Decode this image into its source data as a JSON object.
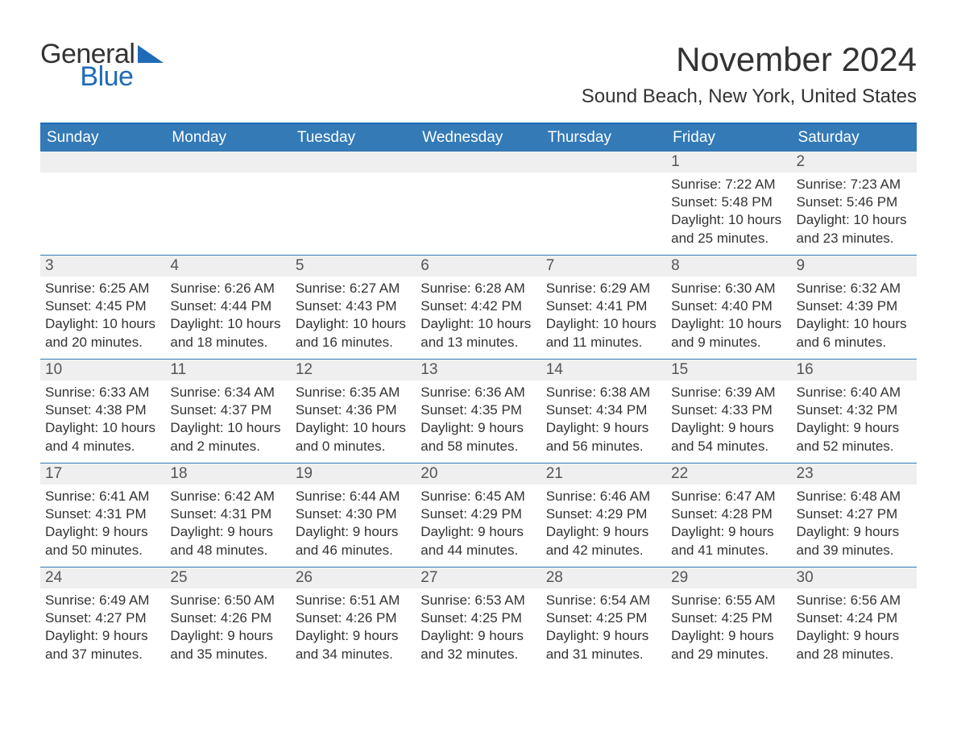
{
  "logo": {
    "general": "General",
    "blue": "Blue"
  },
  "title": "November 2024",
  "location": "Sound Beach, New York, United States",
  "header_bg": "#337ab7",
  "header_fg": "#ffffff",
  "daynum_bg": "#efefef",
  "text_color": "#333333",
  "accent_color": "#1f6bb7",
  "weekdays": [
    "Sunday",
    "Monday",
    "Tuesday",
    "Wednesday",
    "Thursday",
    "Friday",
    "Saturday"
  ],
  "weeks": [
    [
      {
        "empty": true
      },
      {
        "empty": true
      },
      {
        "empty": true
      },
      {
        "empty": true
      },
      {
        "empty": true
      },
      {
        "num": "1",
        "sunrise": "Sunrise: 7:22 AM",
        "sunset": "Sunset: 5:48 PM",
        "day1": "Daylight: 10 hours",
        "day2": "and 25 minutes."
      },
      {
        "num": "2",
        "sunrise": "Sunrise: 7:23 AM",
        "sunset": "Sunset: 5:46 PM",
        "day1": "Daylight: 10 hours",
        "day2": "and 23 minutes."
      }
    ],
    [
      {
        "num": "3",
        "sunrise": "Sunrise: 6:25 AM",
        "sunset": "Sunset: 4:45 PM",
        "day1": "Daylight: 10 hours",
        "day2": "and 20 minutes."
      },
      {
        "num": "4",
        "sunrise": "Sunrise: 6:26 AM",
        "sunset": "Sunset: 4:44 PM",
        "day1": "Daylight: 10 hours",
        "day2": "and 18 minutes."
      },
      {
        "num": "5",
        "sunrise": "Sunrise: 6:27 AM",
        "sunset": "Sunset: 4:43 PM",
        "day1": "Daylight: 10 hours",
        "day2": "and 16 minutes."
      },
      {
        "num": "6",
        "sunrise": "Sunrise: 6:28 AM",
        "sunset": "Sunset: 4:42 PM",
        "day1": "Daylight: 10 hours",
        "day2": "and 13 minutes."
      },
      {
        "num": "7",
        "sunrise": "Sunrise: 6:29 AM",
        "sunset": "Sunset: 4:41 PM",
        "day1": "Daylight: 10 hours",
        "day2": "and 11 minutes."
      },
      {
        "num": "8",
        "sunrise": "Sunrise: 6:30 AM",
        "sunset": "Sunset: 4:40 PM",
        "day1": "Daylight: 10 hours",
        "day2": "and 9 minutes."
      },
      {
        "num": "9",
        "sunrise": "Sunrise: 6:32 AM",
        "sunset": "Sunset: 4:39 PM",
        "day1": "Daylight: 10 hours",
        "day2": "and 6 minutes."
      }
    ],
    [
      {
        "num": "10",
        "sunrise": "Sunrise: 6:33 AM",
        "sunset": "Sunset: 4:38 PM",
        "day1": "Daylight: 10 hours",
        "day2": "and 4 minutes."
      },
      {
        "num": "11",
        "sunrise": "Sunrise: 6:34 AM",
        "sunset": "Sunset: 4:37 PM",
        "day1": "Daylight: 10 hours",
        "day2": "and 2 minutes."
      },
      {
        "num": "12",
        "sunrise": "Sunrise: 6:35 AM",
        "sunset": "Sunset: 4:36 PM",
        "day1": "Daylight: 10 hours",
        "day2": "and 0 minutes."
      },
      {
        "num": "13",
        "sunrise": "Sunrise: 6:36 AM",
        "sunset": "Sunset: 4:35 PM",
        "day1": "Daylight: 9 hours",
        "day2": "and 58 minutes."
      },
      {
        "num": "14",
        "sunrise": "Sunrise: 6:38 AM",
        "sunset": "Sunset: 4:34 PM",
        "day1": "Daylight: 9 hours",
        "day2": "and 56 minutes."
      },
      {
        "num": "15",
        "sunrise": "Sunrise: 6:39 AM",
        "sunset": "Sunset: 4:33 PM",
        "day1": "Daylight: 9 hours",
        "day2": "and 54 minutes."
      },
      {
        "num": "16",
        "sunrise": "Sunrise: 6:40 AM",
        "sunset": "Sunset: 4:32 PM",
        "day1": "Daylight: 9 hours",
        "day2": "and 52 minutes."
      }
    ],
    [
      {
        "num": "17",
        "sunrise": "Sunrise: 6:41 AM",
        "sunset": "Sunset: 4:31 PM",
        "day1": "Daylight: 9 hours",
        "day2": "and 50 minutes."
      },
      {
        "num": "18",
        "sunrise": "Sunrise: 6:42 AM",
        "sunset": "Sunset: 4:31 PM",
        "day1": "Daylight: 9 hours",
        "day2": "and 48 minutes."
      },
      {
        "num": "19",
        "sunrise": "Sunrise: 6:44 AM",
        "sunset": "Sunset: 4:30 PM",
        "day1": "Daylight: 9 hours",
        "day2": "and 46 minutes."
      },
      {
        "num": "20",
        "sunrise": "Sunrise: 6:45 AM",
        "sunset": "Sunset: 4:29 PM",
        "day1": "Daylight: 9 hours",
        "day2": "and 44 minutes."
      },
      {
        "num": "21",
        "sunrise": "Sunrise: 6:46 AM",
        "sunset": "Sunset: 4:29 PM",
        "day1": "Daylight: 9 hours",
        "day2": "and 42 minutes."
      },
      {
        "num": "22",
        "sunrise": "Sunrise: 6:47 AM",
        "sunset": "Sunset: 4:28 PM",
        "day1": "Daylight: 9 hours",
        "day2": "and 41 minutes."
      },
      {
        "num": "23",
        "sunrise": "Sunrise: 6:48 AM",
        "sunset": "Sunset: 4:27 PM",
        "day1": "Daylight: 9 hours",
        "day2": "and 39 minutes."
      }
    ],
    [
      {
        "num": "24",
        "sunrise": "Sunrise: 6:49 AM",
        "sunset": "Sunset: 4:27 PM",
        "day1": "Daylight: 9 hours",
        "day2": "and 37 minutes."
      },
      {
        "num": "25",
        "sunrise": "Sunrise: 6:50 AM",
        "sunset": "Sunset: 4:26 PM",
        "day1": "Daylight: 9 hours",
        "day2": "and 35 minutes."
      },
      {
        "num": "26",
        "sunrise": "Sunrise: 6:51 AM",
        "sunset": "Sunset: 4:26 PM",
        "day1": "Daylight: 9 hours",
        "day2": "and 34 minutes."
      },
      {
        "num": "27",
        "sunrise": "Sunrise: 6:53 AM",
        "sunset": "Sunset: 4:25 PM",
        "day1": "Daylight: 9 hours",
        "day2": "and 32 minutes."
      },
      {
        "num": "28",
        "sunrise": "Sunrise: 6:54 AM",
        "sunset": "Sunset: 4:25 PM",
        "day1": "Daylight: 9 hours",
        "day2": "and 31 minutes."
      },
      {
        "num": "29",
        "sunrise": "Sunrise: 6:55 AM",
        "sunset": "Sunset: 4:25 PM",
        "day1": "Daylight: 9 hours",
        "day2": "and 29 minutes."
      },
      {
        "num": "30",
        "sunrise": "Sunrise: 6:56 AM",
        "sunset": "Sunset: 4:24 PM",
        "day1": "Daylight: 9 hours",
        "day2": "and 28 minutes."
      }
    ]
  ]
}
